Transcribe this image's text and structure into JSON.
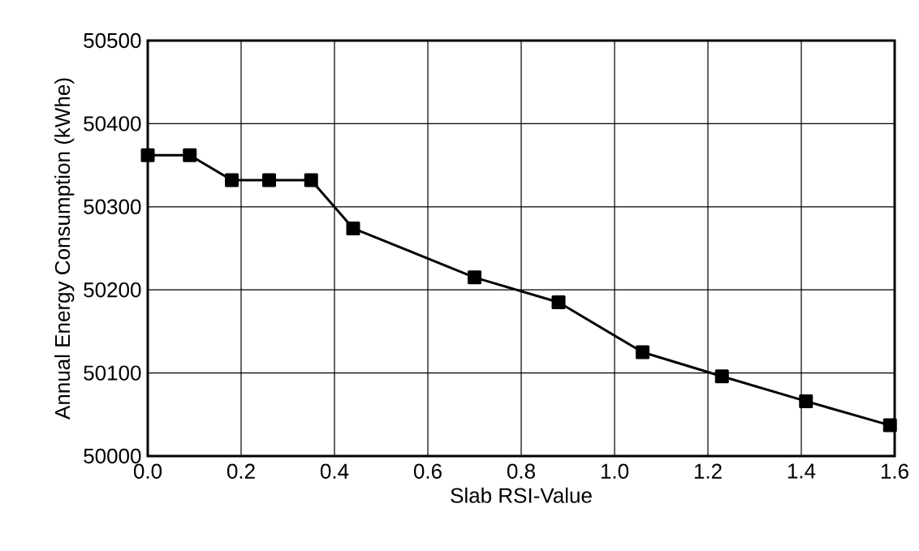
{
  "chart_data": {
    "type": "line",
    "xlabel": "Slab RSI-Value",
    "ylabel": "Annual Energy Consumption (kWhe)",
    "x": [
      0.0,
      0.09,
      0.18,
      0.26,
      0.35,
      0.44,
      0.7,
      0.88,
      1.06,
      1.23,
      1.41,
      1.59
    ],
    "series": [
      {
        "color": "#000000",
        "values": [
          50362,
          50362,
          50332,
          50332,
          50332,
          50274,
          50215,
          50185,
          50125,
          50096,
          50066,
          50037
        ]
      }
    ],
    "xlim": [
      0,
      1.6
    ],
    "ylim": [
      50000,
      50500
    ],
    "xticks": [
      {
        "value": 0,
        "label": "0.0"
      },
      {
        "value": 0.2,
        "label": "0.2"
      },
      {
        "value": 0.4,
        "label": "0.4"
      },
      {
        "value": 0.6,
        "label": "0.6"
      },
      {
        "value": 0.8,
        "label": "0.8"
      },
      {
        "value": 1.0,
        "label": "1.0"
      },
      {
        "value": 1.2,
        "label": "1.2"
      },
      {
        "value": 1.4,
        "label": "1.4"
      },
      {
        "value": 1.6,
        "label": "1.6"
      }
    ],
    "yticks": [
      50000,
      50100,
      50200,
      50300,
      50400,
      50500
    ],
    "grid": true,
    "marker": "square",
    "line_style": "solid"
  }
}
